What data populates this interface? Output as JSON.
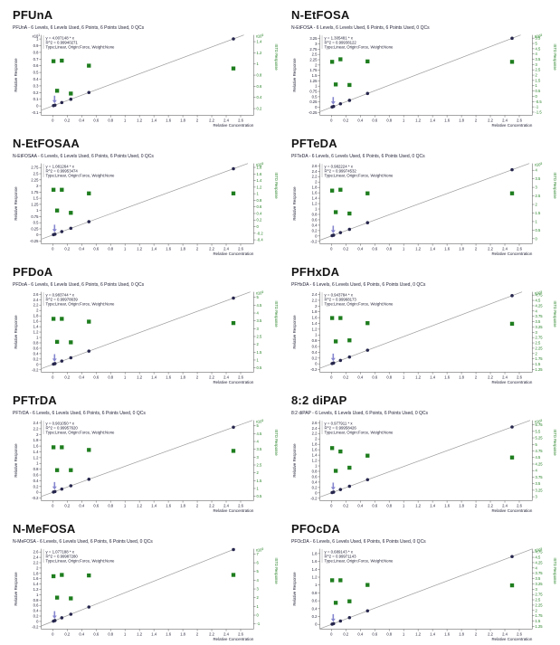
{
  "colors": {
    "cal_point": "#26264d",
    "istd_square": "#1e7d1e",
    "fit_line": "#9a9a9a",
    "axis": "#6f6f6f",
    "tick_text": "#222238",
    "arrow": "#8585cf",
    "title_text": "#151515"
  },
  "chart_data": {
    "type": "scatter",
    "shared": {
      "x_label": "Relative Concentration",
      "y_label": "Relative Response",
      "right_label": "ISTD Response",
      "right_scale": "x10^5",
      "type_line": "Type:Linear, Origin:Force, Weight:None",
      "x_ticks": [
        0,
        0.2,
        0.4,
        0.6,
        0.8,
        1,
        1.2,
        1.4,
        1.6,
        1.8,
        2,
        2.2,
        2.4,
        2.6
      ],
      "x_range": [
        -0.16,
        2.78
      ],
      "cal_x": [
        0.01,
        0.03,
        0.125,
        0.25,
        0.5,
        2.5
      ],
      "istd_x": [
        0.01,
        0.06,
        0.125,
        0.25,
        0.5,
        2.5
      ],
      "arrow_x": 0.025,
      "legend": "dark circles = calibration points (left axis), green squares = ISTD response (right axis)"
    },
    "charts": [
      {
        "title": "PFUnA",
        "subtitle": "PFUnA - 6 Levels, 6 Levels Used, 6 Points, 6 Points Used, 0 QCs",
        "equation": "y = 4.007148 * x",
        "r2": "R^2 = 0.99940271",
        "slope": 4.007148,
        "left_div": 10,
        "left_scale": "x10^1",
        "left_ticks": [
          -0.1,
          0,
          0.1,
          0.2,
          0.3,
          0.4,
          0.5,
          0.6,
          0.7,
          0.8,
          0.9,
          1
        ],
        "left_range": [
          -0.14,
          1.06
        ],
        "right_ticks": [
          0.2,
          0.4,
          0.6,
          0.8,
          1,
          1.2,
          1.4
        ],
        "right_range": [
          0.08,
          1.52
        ],
        "istd_y": [
          1.05,
          0.52,
          1.06,
          0.47,
          0.97,
          0.92
        ]
      },
      {
        "title": "N-EtFOSA",
        "subtitle": "N-EtFOSA - 6 Levels, 6 Levels Used, 6 Points, 6 Points Used, 0 QCs",
        "equation": "y = 1.305481 * x",
        "r2": "R^2 = 0.99938122",
        "slope": 1.305481,
        "left_div": 1,
        "left_scale": "",
        "left_ticks": [
          -0.25,
          0,
          0.25,
          0.5,
          0.75,
          1,
          1.25,
          1.5,
          1.75,
          2,
          2.25,
          2.5,
          2.75,
          3,
          3.25
        ],
        "left_range": [
          -0.38,
          3.42
        ],
        "right_ticks": [
          -1.5,
          -1,
          -0.5,
          0,
          0.5,
          1,
          1.5,
          2,
          2.5,
          3,
          3.5,
          4,
          4.5,
          5,
          5.5
        ],
        "right_range": [
          -1.8,
          5.8
        ],
        "istd_y": [
          3.26,
          1.12,
          3.5,
          1.07,
          3.3,
          3.26
        ]
      },
      {
        "title": "N-EtFOSAA",
        "subtitle": "N-EtFOSAA - 6 Levels, 6 Levels Used, 6 Points, 6 Points Used, 0 QCs",
        "equation": "y = 1.081264 * x",
        "r2": "R^2 = 0.99953474",
        "slope": 1.081264,
        "left_div": 1,
        "left_scale": "",
        "left_ticks": [
          -0.25,
          0,
          0.25,
          0.5,
          0.75,
          1,
          1.25,
          1.5,
          1.75,
          2,
          2.25,
          2.5,
          2.75
        ],
        "left_range": [
          -0.36,
          2.92
        ],
        "right_ticks": [
          -0.4,
          -0.2,
          0,
          0.2,
          0.4,
          0.6,
          0.8,
          1,
          1.2,
          1.4,
          1.6,
          1.8
        ],
        "right_range": [
          -0.52,
          1.92
        ],
        "istd_y": [
          1.12,
          0.49,
          1.12,
          0.42,
          1.01,
          1.01
        ]
      },
      {
        "title": "PFTeDA",
        "subtitle": "PFTeDA - 6 Levels, 6 Levels Used, 6 Points, 6 Points Used, 0 QCs",
        "equation": "y = 0.982224 * x",
        "r2": "R^2 = 0.99974532",
        "slope": 0.982224,
        "left_div": 1,
        "left_scale": "",
        "left_ticks": [
          -0.2,
          0,
          0.2,
          0.4,
          0.6,
          0.8,
          1,
          1.2,
          1.4,
          1.6,
          1.8,
          2,
          2.2,
          2.4,
          2.6
        ],
        "left_range": [
          -0.29,
          2.69
        ],
        "right_ticks": [
          0,
          0.5,
          1,
          1.5,
          2,
          2.5,
          3,
          3.5,
          4
        ],
        "right_range": [
          -0.3,
          4.4
        ],
        "istd_y": [
          2.81,
          1.55,
          2.86,
          1.47,
          2.65,
          2.65
        ]
      },
      {
        "title": "PFDoA",
        "subtitle": "PFDoA - 6 Levels, 6 Levels Used, 6 Points, 6 Points Used, 0 QCs",
        "equation": "y = 0.983744 * x",
        "r2": "R^2 = 0.99978639",
        "slope": 0.983744,
        "left_div": 1,
        "left_scale": "",
        "left_ticks": [
          -0.2,
          0,
          0.2,
          0.4,
          0.6,
          0.8,
          1,
          1.2,
          1.4,
          1.6,
          1.8,
          2,
          2.2,
          2.4,
          2.6
        ],
        "left_range": [
          -0.29,
          2.69
        ],
        "right_ticks": [
          0.5,
          1,
          1.5,
          2,
          2.5,
          3,
          3.5,
          4,
          4.5,
          5
        ],
        "right_range": [
          0.22,
          5.35
        ],
        "istd_y": [
          3.63,
          2.16,
          3.63,
          2.13,
          3.45,
          3.36
        ]
      },
      {
        "title": "PFHxDA",
        "subtitle": "PFHxDA - 6 Levels, 6 Levels Used, 6 Points, 6 Points Used, 0 QCs",
        "equation": "y = 0.943784 * x",
        "r2": "R^2 = 0.99968173",
        "slope": 0.943784,
        "left_div": 1,
        "left_scale": "",
        "left_ticks": [
          -0.2,
          0,
          0.2,
          0.4,
          0.6,
          0.8,
          1,
          1.2,
          1.4,
          1.6,
          1.8,
          2,
          2.2,
          2.4
        ],
        "left_range": [
          -0.29,
          2.49
        ],
        "right_ticks": [
          1.25,
          1.5,
          1.75,
          2,
          2.25,
          2.5,
          2.75,
          3,
          3.25,
          3.5,
          3.75,
          4,
          4.25,
          4.5,
          4.75
        ],
        "right_range": [
          1.12,
          4.9
        ],
        "istd_y": [
          3.67,
          2.57,
          3.67,
          2.62,
          3.43,
          3.4
        ]
      },
      {
        "title": "PFTrDA",
        "subtitle": "PFTrDA - 6 Levels, 6 Levels Used, 6 Points, 6 Points Used, 0 QCs",
        "equation": "y = 0.901050 * x",
        "r2": "R^2 = 0.99957620",
        "slope": 0.90105,
        "left_div": 1,
        "left_scale": "",
        "left_ticks": [
          -0.2,
          0,
          0.2,
          0.4,
          0.6,
          0.8,
          1,
          1.2,
          1.4,
          1.6,
          1.8,
          2,
          2.2,
          2.4
        ],
        "left_range": [
          -0.29,
          2.49
        ],
        "right_ticks": [
          0.5,
          1,
          1.5,
          2,
          2.5,
          3,
          3.5,
          4,
          4.5,
          5
        ],
        "right_range": [
          0.22,
          5.35
        ],
        "istd_y": [
          3.63,
          2.17,
          3.63,
          2.17,
          3.46,
          3.4
        ]
      },
      {
        "title": "8:2 diPAP",
        "subtitle": "8:2 diPAP - 6 Levels, 6 Levels Used, 6 Points, 6 Points Used, 0 QCs",
        "equation": "y = 0.977911 * x",
        "r2": "R^2 = 0.99958426",
        "slope": 0.977911,
        "left_div": 1,
        "left_scale": "",
        "left_ticks": [
          -0.2,
          0,
          0.2,
          0.4,
          0.6,
          0.8,
          1,
          1.2,
          1.4,
          1.6,
          1.8,
          2,
          2.2,
          2.4,
          2.6
        ],
        "left_range": [
          -0.29,
          2.69
        ],
        "right_ticks": [
          3,
          3.25,
          3.5,
          3.75,
          4,
          4.25,
          4.5,
          4.75,
          5,
          5.25,
          5.5,
          5.75
        ],
        "right_range": [
          2.85,
          5.92
        ],
        "istd_y": [
          4.86,
          3.99,
          4.73,
          4.11,
          4.57,
          4.5
        ]
      },
      {
        "title": "N-MeFOSA",
        "subtitle": "N-MeFOSA - 6 Levels, 6 Levels Used, 6 Points, 6 Points Used, 0 QCs",
        "equation": "y = 1.077188 * x",
        "r2": "R^2 = 0.99987280",
        "slope": 1.077188,
        "left_div": 1,
        "left_scale": "",
        "left_ticks": [
          -0.2,
          0,
          0.2,
          0.4,
          0.6,
          0.8,
          1,
          1.2,
          1.4,
          1.6,
          1.8,
          2,
          2.2,
          2.4,
          2.6
        ],
        "left_range": [
          -0.29,
          2.72
        ],
        "right_ticks": [
          -1,
          0,
          1,
          2,
          3,
          4,
          5,
          6,
          7
        ],
        "right_range": [
          -1.6,
          7.6
        ],
        "istd_y": [
          4.46,
          2.01,
          4.61,
          1.92,
          4.55,
          4.61
        ]
      },
      {
        "title": "PFOcDA",
        "subtitle": "PFOcDA - 6 Levels, 6 Levels Used, 6 Points, 6 Points Used, 0 QCs",
        "equation": "y = 0.689143 * x",
        "r2": "R^2 = 0.99971143",
        "slope": 0.689143,
        "left_div": 1,
        "left_scale": "",
        "left_ticks": [
          0,
          0.2,
          0.4,
          0.6,
          0.8,
          1,
          1.2,
          1.4,
          1.6,
          1.8
        ],
        "left_range": [
          -0.12,
          1.92
        ],
        "right_ticks": [
          1.25,
          1.5,
          1.75,
          2,
          2.25,
          2.5,
          2.75,
          3,
          3.25,
          3.5,
          3.75,
          4,
          4.25,
          4.5,
          4.75
        ],
        "right_range": [
          1.12,
          4.9
        ],
        "istd_y": [
          3.42,
          2.36,
          3.42,
          2.43,
          3.2,
          3.18
        ]
      }
    ]
  }
}
